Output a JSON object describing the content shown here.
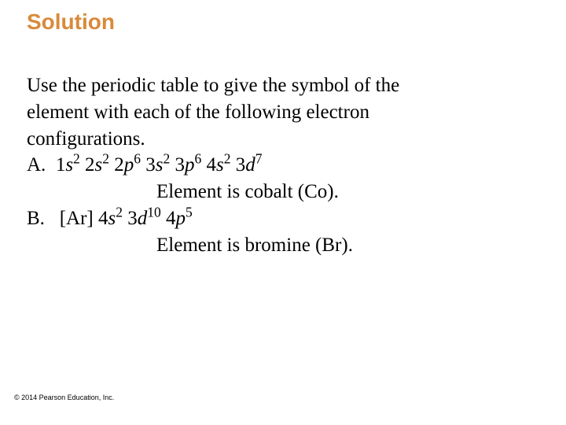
{
  "title": {
    "text": "Solution",
    "color": "#d98a3a",
    "fontsize": 28
  },
  "body": {
    "color": "#000000",
    "fontsize": 25,
    "intro_l1": "Use the periodic table to give the symbol of the",
    "intro_l2": "element with each of the following electron",
    "intro_l3": "configurations.",
    "itemA": {
      "label": "A.",
      "config_plain": "1s2 2s2 2p6 3s2 3p6 4s2 3d7",
      "terms": [
        {
          "n": "1",
          "l": "s",
          "e": "2"
        },
        {
          "n": "2",
          "l": "s",
          "e": "2"
        },
        {
          "n": "2",
          "l": "p",
          "e": "6"
        },
        {
          "n": "3",
          "l": "s",
          "e": "2"
        },
        {
          "n": "3",
          "l": "p",
          "e": "6"
        },
        {
          "n": "4",
          "l": "s",
          "e": "2"
        },
        {
          "n": "3",
          "l": "d",
          "e": "7"
        }
      ],
      "answer": "Element is cobalt (Co)."
    },
    "itemB": {
      "label": "B.",
      "noble": "[Ar]",
      "config_plain": "[Ar] 4s2 3d10 4p5",
      "terms": [
        {
          "n": "4",
          "l": "s",
          "e": "2"
        },
        {
          "n": "3",
          "l": "d",
          "e": "10"
        },
        {
          "n": "4",
          "l": "p",
          "e": "5"
        }
      ],
      "answer": "Element is bromine (Br)."
    }
  },
  "copyright": {
    "text": "© 2014 Pearson Education, Inc.",
    "color": "#000000",
    "fontsize": 9
  }
}
